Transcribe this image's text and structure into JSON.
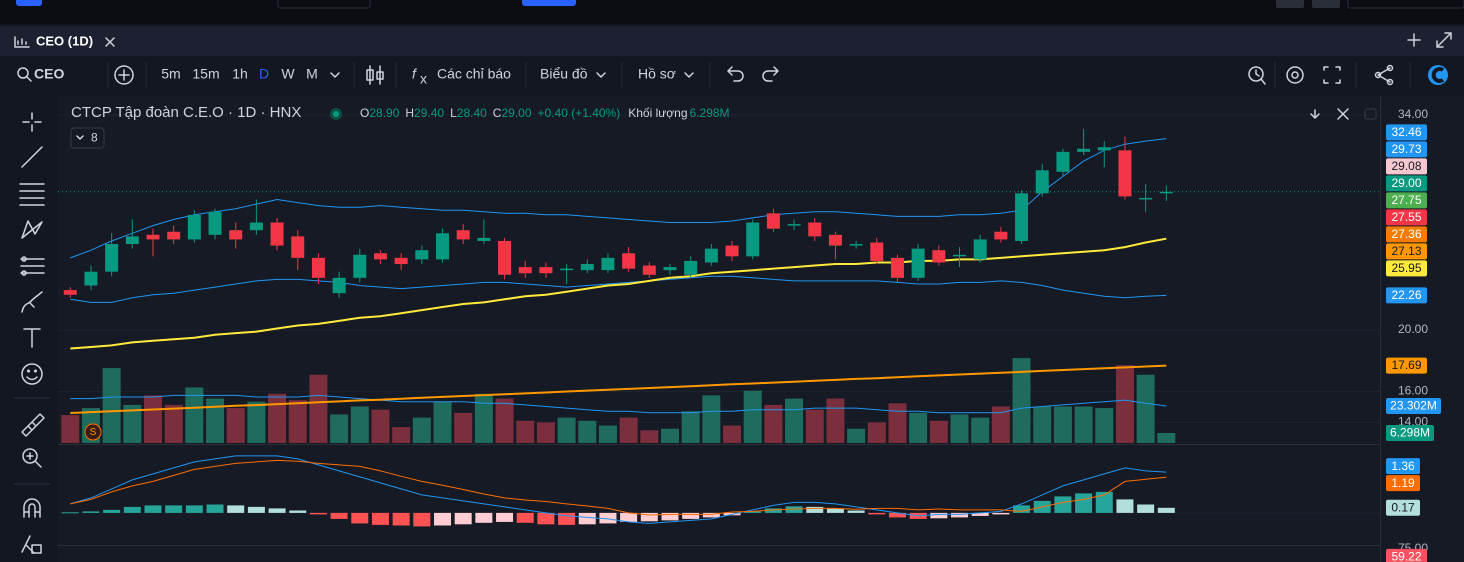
{
  "ui": {
    "tab": "CEO (1D)",
    "symbol": "CEO",
    "intervals": [
      "5m",
      "15m",
      "1h",
      "D",
      "W",
      "M"
    ],
    "indicators": "Các chỉ báo",
    "chart_type": "Biểu đồ",
    "profile": "Hồ sơ"
  },
  "chart_data": {
    "type": "candlestick",
    "title": "CTCP Tập đoàn C.E.O · 1D · HNX",
    "ohlc_legend": [
      {
        "key": "O",
        "value": "28.90"
      },
      {
        "key": "H",
        "value": "29.40"
      },
      {
        "key": "L",
        "value": "28.40"
      },
      {
        "key": "C",
        "value": "29.00"
      }
    ],
    "change": "+0.40 (+1.40%)",
    "volume_label": "Khối lượng",
    "volume_value": "6.298M",
    "indicator_count": "8",
    "up_color": "#089981",
    "down_color": "#f23645",
    "volume_up_color": "#1f6b5c",
    "volume_down_color": "#7b2e3b",
    "open": [
      22.6,
      22.9,
      23.8,
      25.6,
      26.2,
      26.4,
      25.9,
      26.2,
      26.5,
      26.5,
      27.0,
      26.1,
      24.7,
      22.4,
      23.4,
      25.0,
      24.7,
      24.6,
      24.6,
      26.5,
      25.8,
      25.8,
      24.1,
      24.1,
      23.9,
      23.9,
      23.9,
      25.0,
      24.2,
      23.9,
      23.6,
      24.4,
      25.5,
      24.8,
      27.6,
      26.8,
      27.0,
      26.2,
      25.5,
      25.7,
      24.7,
      23.4,
      25.2,
      24.8,
      24.6,
      26.4,
      25.8,
      28.9,
      30.3,
      31.6,
      31.7,
      31.7,
      28.5,
      28.9
    ],
    "high": [
      22.8,
      24.2,
      26.3,
      27.2,
      26.6,
      26.8,
      27.8,
      27.9,
      27.0,
      28.5,
      27.3,
      26.5,
      25.0,
      23.8,
      25.3,
      25.2,
      25.0,
      25.5,
      26.6,
      26.9,
      27.2,
      26.0,
      24.5,
      24.4,
      24.3,
      24.6,
      25.0,
      25.4,
      24.4,
      24.3,
      24.8,
      25.6,
      25.8,
      27.2,
      27.9,
      27.2,
      27.3,
      26.4,
      25.8,
      26.0,
      24.9,
      25.6,
      25.5,
      25.4,
      26.2,
      26.7,
      29.1,
      30.8,
      31.8,
      33.1,
      32.3,
      32.6,
      29.5,
      29.4
    ],
    "low": [
      22.1,
      22.6,
      23.5,
      25.3,
      24.8,
      25.6,
      25.7,
      25.9,
      25.3,
      26.2,
      25.2,
      23.9,
      23.0,
      22.1,
      23.1,
      24.3,
      23.9,
      24.3,
      24.4,
      25.6,
      25.6,
      23.3,
      23.4,
      23.4,
      23.0,
      23.7,
      23.7,
      23.8,
      23.4,
      23.6,
      23.4,
      24.2,
      24.5,
      24.6,
      26.4,
      26.5,
      25.8,
      24.6,
      25.3,
      24.3,
      23.1,
      23.2,
      24.2,
      24.1,
      24.4,
      25.7,
      25.6,
      28.7,
      30.0,
      31.4,
      30.6,
      28.5,
      27.7,
      28.4
    ],
    "close": [
      22.3,
      23.8,
      25.6,
      26.1,
      25.9,
      25.9,
      27.5,
      27.7,
      25.9,
      27.0,
      25.5,
      24.7,
      23.4,
      23.4,
      24.9,
      24.6,
      24.3,
      25.2,
      26.3,
      25.9,
      26.0,
      23.6,
      23.7,
      23.7,
      24.0,
      24.3,
      24.7,
      24.0,
      23.6,
      24.1,
      24.5,
      25.3,
      24.8,
      27.0,
      26.6,
      26.9,
      26.1,
      25.5,
      25.6,
      24.5,
      23.4,
      25.3,
      24.4,
      24.9,
      25.9,
      25.9,
      28.9,
      30.4,
      31.6,
      31.8,
      31.9,
      28.7,
      28.6,
      29.0
    ],
    "volume": [
      17.6,
      22,
      47.2,
      24,
      30,
      24,
      35,
      28,
      22,
      26,
      31,
      27,
      43,
      18,
      23,
      21,
      10,
      16,
      26,
      19,
      31,
      28,
      14,
      13,
      16,
      14,
      11,
      16,
      8,
      9,
      20,
      30,
      11,
      33,
      24,
      28,
      21,
      28,
      9,
      13,
      25,
      19,
      14,
      18,
      16,
      23,
      53.5,
      23,
      23,
      23,
      22,
      49,
      43,
      6.298
    ],
    "volume_ma": {
      "color": "#2196f3",
      "values": [
        28,
        28,
        29,
        29,
        29,
        30,
        30,
        30,
        30,
        29,
        29,
        29,
        30,
        29,
        28,
        27,
        26,
        26,
        26,
        26,
        25,
        25,
        24,
        23,
        22,
        21,
        20,
        20,
        19,
        19,
        19,
        20,
        20,
        21,
        21,
        21,
        22,
        22,
        22,
        21,
        20,
        20,
        19,
        19,
        19,
        19,
        22,
        23,
        24,
        25,
        26,
        27,
        25,
        23.302
      ]
    },
    "overlays": [
      {
        "color": "#2196f3",
        "line_width": 1,
        "values": [
          24.7,
          25.2,
          25.8,
          26.3,
          26.8,
          27.2,
          27.5,
          27.7,
          27.9,
          28.2,
          28.5,
          28.3,
          28.1,
          28.0,
          28.0,
          28.1,
          28.0,
          27.9,
          27.8,
          27.8,
          27.7,
          27.6,
          27.6,
          27.5,
          27.5,
          27.4,
          27.3,
          27.2,
          27.1,
          27.0,
          27.0,
          27.0,
          27.1,
          27.3,
          27.5,
          27.6,
          27.7,
          27.7,
          27.6,
          27.5,
          27.4,
          27.4,
          27.4,
          27.5,
          27.5,
          27.6,
          27.8,
          29.0,
          30.0,
          31.0,
          31.7,
          32.1,
          32.3,
          32.46
        ]
      },
      {
        "color": "#2196f3",
        "line_width": 1,
        "values": [
          22.0,
          21.8,
          21.8,
          22.1,
          22.3,
          22.4,
          22.6,
          22.8,
          23.0,
          23.2,
          23.3,
          23.3,
          23.2,
          23.1,
          22.9,
          22.8,
          22.7,
          22.8,
          22.9,
          23.0,
          23.1,
          23.1,
          23.0,
          22.9,
          22.8,
          22.9,
          23.0,
          23.1,
          23.2,
          23.3,
          23.4,
          23.5,
          23.5,
          23.4,
          23.3,
          23.2,
          23.2,
          23.2,
          23.2,
          23.2,
          23.1,
          23.0,
          23.0,
          23.1,
          23.1,
          23.2,
          23.1,
          22.9,
          22.6,
          22.4,
          22.2,
          22.1,
          22.2,
          22.26
        ]
      },
      {
        "color": "#ff9800",
        "line_width": 2,
        "values": [
          14.6,
          14.66,
          14.72,
          14.77,
          14.83,
          14.89,
          14.95,
          15.01,
          15.07,
          15.12,
          15.18,
          15.24,
          15.3,
          15.36,
          15.42,
          15.47,
          15.53,
          15.59,
          15.65,
          15.71,
          15.77,
          15.82,
          15.88,
          15.94,
          16.0,
          16.06,
          16.12,
          16.17,
          16.23,
          16.29,
          16.35,
          16.41,
          16.47,
          16.52,
          16.58,
          16.64,
          16.7,
          16.76,
          16.82,
          16.87,
          16.93,
          16.99,
          17.05,
          17.11,
          17.17,
          17.22,
          17.28,
          17.34,
          17.4,
          17.46,
          17.52,
          17.57,
          17.63,
          17.69
        ]
      },
      {
        "color": "#ffeb3b",
        "line_width": 2,
        "values": [
          18.8,
          18.9,
          19.0,
          19.2,
          19.3,
          19.4,
          19.5,
          19.7,
          19.8,
          19.9,
          20.1,
          20.3,
          20.4,
          20.6,
          20.8,
          20.9,
          21.1,
          21.3,
          21.5,
          21.7,
          21.8,
          22.0,
          22.2,
          22.3,
          22.5,
          22.7,
          22.9,
          23.0,
          23.2,
          23.4,
          23.5,
          23.7,
          23.8,
          23.9,
          24.0,
          24.1,
          24.2,
          24.3,
          24.3,
          24.4,
          24.4,
          24.5,
          24.5,
          24.6,
          24.6,
          24.7,
          24.8,
          24.9,
          25.0,
          25.1,
          25.2,
          25.4,
          25.7,
          25.95
        ]
      }
    ],
    "ylim": [
      12.65,
      35.17
    ],
    "yticks": [
      {
        "value": 34,
        "label": "34.00"
      },
      {
        "value": 20,
        "label": "20.00"
      },
      {
        "value": 16,
        "label": "16.00"
      },
      {
        "value": 14,
        "label": "14.00"
      }
    ],
    "volume_ylim": [
      0,
      218
    ],
    "price_tags": [
      {
        "value": 32.46,
        "color": "#2196f3"
      },
      {
        "value": 29.73,
        "color": "#2196f3"
      },
      {
        "value": 29.08,
        "color": "#f8c8d0"
      },
      {
        "value": 29.0,
        "label": "29.00",
        "color": "#089981"
      },
      {
        "value": 27.75,
        "color": "#4caf50"
      },
      {
        "value": 27.55,
        "color": "#f23645"
      },
      {
        "value": 27.36,
        "color": "#f57c00"
      },
      {
        "value": 27.13,
        "color": "#ff9800"
      },
      {
        "value": 25.95,
        "color": "#ffeb3b"
      },
      {
        "value": 22.26,
        "color": "#2196f3"
      },
      {
        "value": 17.69,
        "color": "#ff9800"
      }
    ],
    "volume_tags": [
      {
        "value": 23.302,
        "label": "23.302M",
        "color": "#2196f3"
      },
      {
        "value": 6.298,
        "label": "6.298M",
        "color": "#089981"
      }
    ],
    "macd": {
      "ylim": [
        -1.07,
        2.23
      ],
      "histogram": [
        0.02,
        0.05,
        0.1,
        0.2,
        0.25,
        0.25,
        0.25,
        0.28,
        0.25,
        0.2,
        0.15,
        0.08,
        -0.05,
        -0.2,
        -0.35,
        -0.4,
        -0.42,
        -0.45,
        -0.42,
        -0.38,
        -0.33,
        -0.3,
        -0.33,
        -0.38,
        -0.4,
        -0.38,
        -0.35,
        -0.3,
        -0.28,
        -0.25,
        -0.2,
        -0.15,
        -0.08,
        0.05,
        0.15,
        0.22,
        0.2,
        0.15,
        0.08,
        -0.05,
        -0.15,
        -0.2,
        -0.18,
        -0.15,
        -0.1,
        -0.05,
        0.25,
        0.4,
        0.55,
        0.65,
        0.7,
        0.45,
        0.28,
        0.17
      ],
      "line": {
        "color": "#2196f3",
        "values": [
          0.3,
          0.5,
          0.8,
          1.1,
          1.3,
          1.5,
          1.7,
          1.8,
          1.9,
          1.9,
          1.9,
          1.8,
          1.6,
          1.4,
          1.2,
          1.0,
          0.8,
          0.6,
          0.5,
          0.4,
          0.3,
          0.2,
          0.1,
          0.0,
          -0.1,
          -0.15,
          -0.2,
          -0.3,
          -0.35,
          -0.3,
          -0.25,
          -0.2,
          -0.05,
          0.1,
          0.25,
          0.35,
          0.35,
          0.3,
          0.2,
          0.1,
          0.0,
          -0.1,
          -0.05,
          -0.05,
          0.0,
          0.05,
          0.3,
          0.6,
          0.9,
          1.1,
          1.3,
          1.5,
          1.4,
          1.36
        ]
      },
      "signal": {
        "color": "#ff6d00",
        "values": [
          0.3,
          0.45,
          0.7,
          0.9,
          1.05,
          1.25,
          1.45,
          1.55,
          1.65,
          1.7,
          1.75,
          1.72,
          1.65,
          1.6,
          1.55,
          1.4,
          1.22,
          1.05,
          0.92,
          0.78,
          0.63,
          0.5,
          0.43,
          0.38,
          0.3,
          0.23,
          0.15,
          0.0,
          -0.07,
          -0.05,
          -0.05,
          -0.05,
          0.03,
          0.05,
          0.1,
          0.13,
          0.15,
          0.15,
          0.12,
          0.15,
          0.15,
          0.1,
          0.13,
          0.1,
          0.1,
          0.1,
          0.05,
          0.2,
          0.35,
          0.45,
          0.6,
          1.05,
          1.12,
          1.19
        ]
      },
      "tags": [
        {
          "value": 1.36,
          "color": "#2196f3"
        },
        {
          "value": 1.19,
          "color": "#ff6d00"
        },
        {
          "value": 0.17,
          "color": "#b2dfdb"
        }
      ]
    },
    "rsi": {
      "ylim": [
        25,
        79
      ],
      "yticks": [
        {
          "value": 75,
          "label": "75.00"
        }
      ],
      "tags": [
        {
          "value": 59.22,
          "color": "#f7525f"
        }
      ]
    }
  }
}
